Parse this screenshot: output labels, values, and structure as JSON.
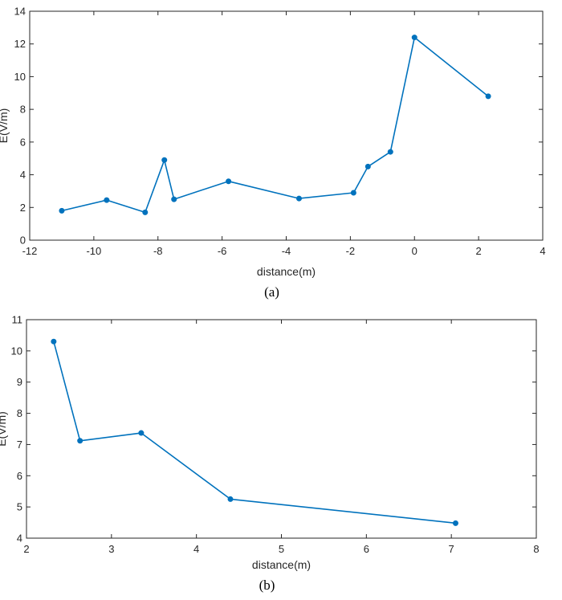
{
  "colors": {
    "series": "#0072BD",
    "axis": "#262626"
  },
  "chart_data": [
    {
      "type": "line",
      "caption": "(a)",
      "xlabel": "distance(m)",
      "ylabel": "E(V/m)",
      "xlim": [
        -12,
        4
      ],
      "ylim": [
        0,
        14
      ],
      "xticks": [
        -12,
        -10,
        -8,
        -6,
        -4,
        -2,
        0,
        2,
        4
      ],
      "yticks": [
        0,
        2,
        4,
        6,
        8,
        10,
        12,
        14
      ],
      "grid": false,
      "series": [
        {
          "name": "E",
          "x": [
            -11,
            -9.6,
            -8.4,
            -7.8,
            -7.5,
            -5.8,
            -3.6,
            -1.9,
            -1.45,
            -0.75,
            0,
            2.3
          ],
          "y": [
            1.8,
            2.45,
            1.7,
            4.9,
            2.5,
            3.6,
            2.55,
            2.9,
            4.5,
            5.4,
            12.4,
            8.8
          ]
        }
      ]
    },
    {
      "type": "line",
      "caption": "(b)",
      "xlabel": "distance(m)",
      "ylabel": "E(V/m)",
      "xlim": [
        2,
        8
      ],
      "ylim": [
        4,
        11
      ],
      "xticks": [
        2,
        3,
        4,
        5,
        6,
        7,
        8
      ],
      "yticks": [
        4,
        5,
        6,
        7,
        8,
        9,
        10,
        11
      ],
      "grid": false,
      "series": [
        {
          "name": "E",
          "x": [
            2.32,
            2.63,
            3.35,
            4.4,
            7.05
          ],
          "y": [
            10.3,
            7.12,
            7.37,
            5.25,
            4.48
          ]
        }
      ]
    }
  ]
}
